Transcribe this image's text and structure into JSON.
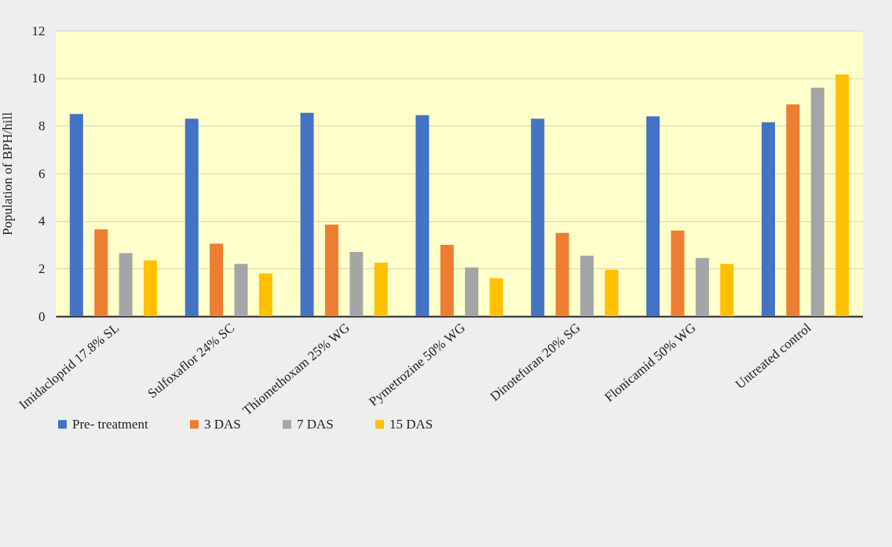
{
  "chart_data": {
    "type": "bar",
    "ylabel": "Population of BPH/hill",
    "categories": [
      "Imidacloprid 17.8% SL",
      "Sulfoxaflor 24% SC",
      "Thiomethoxam 25% WG",
      "Pymetrozine 50% WG",
      "Dinotefuran 20% SG",
      "Flonicamid 50% WG",
      "Untreated control"
    ],
    "series": [
      {
        "name": "Pre- treatment",
        "color": "#4472c4",
        "values": [
          8.5,
          8.3,
          8.55,
          8.45,
          8.3,
          8.4,
          8.15
        ]
      },
      {
        "name": "3 DAS",
        "color": "#ed7d31",
        "values": [
          3.65,
          3.05,
          3.85,
          3.0,
          3.5,
          3.6,
          8.9
        ]
      },
      {
        "name": "7 DAS",
        "color": "#a5a5a5",
        "values": [
          2.65,
          2.2,
          2.7,
          2.05,
          2.55,
          2.45,
          9.6
        ]
      },
      {
        "name": "15 DAS",
        "color": "#ffc000",
        "values": [
          2.35,
          1.8,
          2.25,
          1.6,
          1.95,
          2.2,
          10.15
        ]
      }
    ],
    "ylim": [
      0,
      12
    ],
    "yticks": [
      0,
      2,
      4,
      6,
      8,
      10,
      12
    ],
    "grid": "y",
    "legend": "bottom"
  }
}
